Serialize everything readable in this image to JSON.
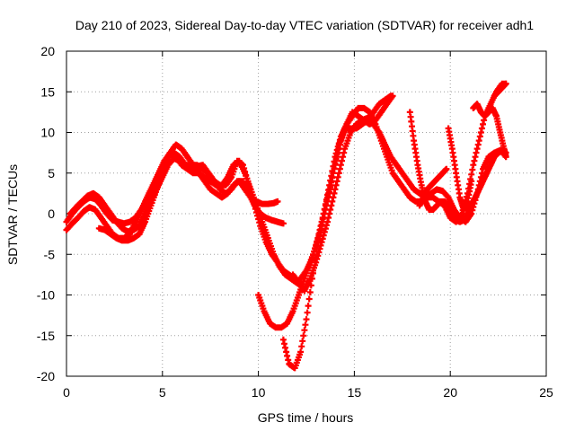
{
  "chart_data": {
    "type": "scatter",
    "title": "Day 210 of 2023, Sidereal Day-to-day VTEC variation (SDTVAR) for receiver adh1",
    "xlabel": "GPS time / hours",
    "ylabel": "SDTVAR / TECUs",
    "xlim": [
      0,
      25
    ],
    "ylim": [
      -20,
      20
    ],
    "xticks": [
      0,
      5,
      10,
      15,
      20,
      25
    ],
    "yticks": [
      -20,
      -15,
      -10,
      -5,
      0,
      5,
      10,
      15,
      20
    ],
    "grid": true,
    "marker": "+",
    "color": "#ff0000",
    "series": [
      {
        "x": [
          0.0,
          0.3,
          0.6,
          0.9,
          1.2,
          1.5,
          1.8,
          2.1,
          2.4,
          2.7,
          3.0,
          3.3,
          3.6,
          3.9,
          4.2,
          4.5,
          4.8,
          5.1,
          5.4,
          5.7,
          6.0,
          6.3,
          6.6,
          6.9,
          7.2,
          7.5,
          7.8,
          8.1,
          8.4,
          8.7,
          9.0,
          9.3,
          9.6,
          9.9,
          10.2,
          10.5,
          10.8,
          11.0
        ],
        "y": [
          -2.0,
          -1.2,
          -0.5,
          0.3,
          0.8,
          0.5,
          -0.5,
          -1.5,
          -2.5,
          -3.0,
          -3.0,
          -2.5,
          -1.0,
          0.5,
          1.5,
          3.0,
          4.5,
          6.0,
          7.5,
          8.5,
          8.0,
          7.0,
          6.0,
          5.0,
          4.0,
          3.0,
          2.5,
          2.0,
          2.5,
          3.5,
          4.0,
          3.0,
          2.0,
          1.5,
          1.2,
          1.2,
          1.3,
          1.5
        ]
      },
      {
        "x": [
          0.0,
          0.3,
          0.6,
          0.9,
          1.2,
          1.5,
          1.8,
          2.1,
          2.4,
          2.7,
          3.0,
          3.3,
          3.6,
          3.9,
          4.2,
          4.5,
          4.8,
          5.1,
          5.4,
          5.7,
          6.0,
          6.3,
          6.6,
          6.9,
          7.2,
          7.5,
          7.8,
          8.1,
          8.4,
          8.7,
          9.0,
          9.3,
          9.6,
          9.9,
          10.2,
          10.5,
          10.8,
          11.1,
          11.4,
          11.7,
          12.0,
          12.3
        ],
        "y": [
          -1.0,
          0.0,
          0.8,
          1.5,
          2.0,
          1.8,
          1.0,
          0.0,
          -0.8,
          -1.0,
          -1.2,
          -1.0,
          -0.5,
          0.5,
          2.0,
          3.5,
          5.0,
          6.5,
          7.5,
          7.0,
          6.0,
          5.5,
          5.0,
          5.0,
          4.5,
          4.0,
          3.5,
          3.5,
          4.5,
          6.0,
          6.5,
          5.0,
          3.0,
          1.0,
          -1.0,
          -3.0,
          -5.0,
          -6.5,
          -7.5,
          -8.0,
          -8.5,
          -9.0
        ]
      },
      {
        "x": [
          0.2,
          0.5,
          0.8,
          1.1,
          1.4,
          1.7,
          2.0,
          2.3,
          2.6,
          2.9,
          3.2,
          3.5,
          3.8,
          4.1,
          4.4,
          4.7,
          5.0,
          5.3,
          5.6,
          5.9,
          6.2,
          6.5,
          6.8,
          7.1,
          7.4,
          7.7,
          8.0,
          8.3,
          8.6,
          8.9,
          9.2,
          9.5,
          9.8,
          10.1,
          10.4,
          10.7,
          11.0,
          11.3
        ],
        "y": [
          0.0,
          0.8,
          1.5,
          2.2,
          2.5,
          2.0,
          1.0,
          0.0,
          -1.0,
          -1.8,
          -2.2,
          -2.0,
          -1.5,
          0.0,
          1.5,
          3.0,
          4.5,
          6.0,
          6.8,
          6.5,
          6.0,
          6.0,
          6.0,
          5.5,
          5.0,
          4.0,
          3.0,
          2.5,
          3.0,
          4.0,
          4.0,
          2.5,
          1.0,
          0.0,
          -0.5,
          -0.8,
          -1.0,
          -1.2
        ]
      },
      {
        "x": [
          1.7,
          2.0,
          2.3,
          2.6,
          2.9,
          3.2,
          3.5,
          3.8,
          4.1,
          4.4,
          4.7,
          5.0,
          5.3,
          5.6,
          5.9,
          6.2,
          6.5,
          6.8,
          7.1,
          7.4,
          7.7,
          8.0,
          8.3,
          8.6,
          8.9,
          9.2,
          9.5,
          9.8,
          10.1,
          10.4,
          10.7,
          11.0,
          11.3,
          11.6,
          11.9,
          12.2
        ],
        "y": [
          -1.8,
          -2.0,
          -2.5,
          -3.0,
          -3.3,
          -3.3,
          -3.0,
          -2.5,
          -1.0,
          1.0,
          3.0,
          5.0,
          7.0,
          7.5,
          7.0,
          6.0,
          5.5,
          5.8,
          6.0,
          5.0,
          4.0,
          3.5,
          3.5,
          4.5,
          6.5,
          6.0,
          3.5,
          1.0,
          -1.5,
          -3.5,
          -5.0,
          -6.0,
          -7.0,
          -7.5,
          -8.0,
          -8.5
        ]
      },
      {
        "x": [
          10.0,
          10.3,
          10.6,
          10.9,
          11.2,
          11.5,
          11.8,
          12.1,
          12.4,
          12.7,
          13.0,
          13.3,
          13.6,
          13.9,
          14.2,
          14.5,
          14.8,
          15.1,
          15.4,
          15.7,
          16.0,
          16.3,
          16.6,
          16.9
        ],
        "y": [
          -10.0,
          -12.0,
          -13.5,
          -14.0,
          -14.0,
          -13.5,
          -12.0,
          -10.0,
          -8.0,
          -6.0,
          -4.0,
          -1.5,
          1.5,
          5.0,
          8.5,
          10.5,
          10.5,
          10.5,
          11.0,
          11.5,
          12.5,
          13.5,
          14.0,
          14.5
        ]
      },
      {
        "x": [
          11.3,
          11.6,
          11.9,
          12.2,
          12.5,
          12.8,
          13.1,
          13.4,
          13.7,
          14.0,
          14.3,
          14.6,
          14.9,
          15.2,
          15.5,
          15.8,
          16.1,
          16.4,
          16.7,
          17.0,
          17.3,
          17.6,
          17.9,
          18.2,
          18.5,
          18.8,
          19.1,
          19.4,
          19.7,
          20.0,
          20.3,
          20.6,
          20.9,
          21.2,
          21.5,
          21.8,
          22.1,
          22.4,
          22.7,
          22.9
        ],
        "y": [
          -15.5,
          -18.5,
          -19.0,
          -17.0,
          -13.0,
          -8.0,
          -4.0,
          0.0,
          3.5,
          7.0,
          9.5,
          11.0,
          12.0,
          13.0,
          13.0,
          12.5,
          11.0,
          9.0,
          7.0,
          5.0,
          4.0,
          3.0,
          2.0,
          1.5,
          1.5,
          2.0,
          2.0,
          1.5,
          1.0,
          -0.5,
          -1.0,
          0.0,
          2.5,
          6.0,
          9.0,
          12.0,
          13.5,
          15.0,
          16.0,
          16.0
        ]
      },
      {
        "x": [
          11.8,
          12.1,
          12.4,
          12.7,
          13.0,
          13.3,
          13.6,
          13.9,
          14.2,
          14.5,
          14.8,
          15.1,
          15.4,
          15.7,
          16.0,
          16.3,
          16.6,
          16.9,
          17.2,
          17.5,
          17.8,
          18.1,
          18.4,
          18.7,
          19.0,
          19.3,
          19.6,
          19.9,
          20.2,
          20.5,
          20.8,
          21.1,
          21.4,
          21.7,
          22.0,
          22.3,
          22.6,
          22.9
        ],
        "y": [
          -7.5,
          -8.5,
          -9.5,
          -8.0,
          -6.0,
          -3.5,
          -1.0,
          2.0,
          5.0,
          8.0,
          10.0,
          11.0,
          11.5,
          11.8,
          11.0,
          10.0,
          8.5,
          7.0,
          6.0,
          5.0,
          4.0,
          3.0,
          2.5,
          2.0,
          2.5,
          3.0,
          2.8,
          2.0,
          0.5,
          -0.5,
          -1.0,
          0.0,
          2.5,
          5.5,
          7.0,
          7.5,
          7.8,
          7.0
        ]
      },
      {
        "x": [
          12.2,
          12.5,
          12.8,
          13.1,
          13.4,
          13.7,
          14.0,
          14.3,
          14.6,
          14.9,
          15.2,
          15.5,
          15.8,
          16.1,
          16.4,
          16.7,
          17.0
        ],
        "y": [
          -8.0,
          -7.0,
          -5.5,
          -3.0,
          0.0,
          3.0,
          6.0,
          9.0,
          11.0,
          12.5,
          12.0,
          11.5,
          11.0,
          11.5,
          12.5,
          13.5,
          14.5
        ]
      },
      {
        "x": [
          17.9,
          18.1,
          18.3,
          18.5,
          18.7,
          18.9,
          19.1,
          19.3,
          19.5,
          19.7,
          19.9,
          20.1,
          20.3,
          20.5,
          20.7,
          20.9,
          21.1,
          21.3,
          21.5,
          21.7,
          21.9,
          22.1,
          22.3,
          22.5,
          22.7,
          22.9
        ],
        "y": [
          12.5,
          9.0,
          6.0,
          3.5,
          1.5,
          0.5,
          0.5,
          1.0,
          1.5,
          1.5,
          1.0,
          0.0,
          -0.8,
          -1.0,
          -0.8,
          0.0,
          1.0,
          2.0,
          3.0,
          4.0,
          5.0,
          6.0,
          7.0,
          7.5,
          7.8,
          7.5
        ]
      },
      {
        "x": [
          18.4,
          18.6,
          18.8,
          19.0,
          19.2,
          19.4,
          19.6,
          19.8
        ],
        "y": [
          1.0,
          2.0,
          3.0,
          3.5,
          4.0,
          4.5,
          5.0,
          5.5
        ]
      },
      {
        "x": [
          19.9,
          20.1,
          20.3,
          20.5,
          20.7,
          20.9,
          21.1
        ],
        "y": [
          10.5,
          8.0,
          5.0,
          2.0,
          0.5,
          1.5,
          4.0
        ]
      },
      {
        "x": [
          21.2,
          21.4,
          21.6,
          21.8,
          22.0,
          22.2,
          22.4,
          22.6,
          22.8,
          22.9
        ],
        "y": [
          13.0,
          13.5,
          12.5,
          12.0,
          12.5,
          13.0,
          12.0,
          10.0,
          8.0,
          7.0
        ]
      },
      {
        "x": [
          22.3,
          22.5,
          22.7,
          22.9
        ],
        "y": [
          14.5,
          15.0,
          15.5,
          16.0
        ]
      }
    ]
  }
}
